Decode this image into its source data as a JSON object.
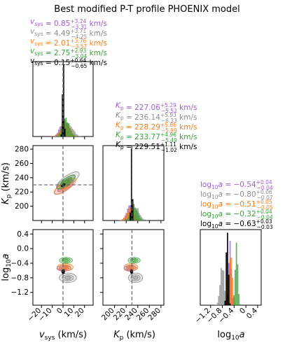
{
  "chart_data": {
    "type": "corner",
    "title": "Best modified P-T profile PHOENIX model",
    "colors": {
      "purple": "#a05ccf",
      "gray": "#8c8c8c",
      "orange": "#f27f1b",
      "green": "#3a9e3a",
      "black": "#000000"
    },
    "params": [
      {
        "key": "vsys",
        "label": "v_sys (km/s)",
        "tex": "vsys",
        "range": [
          -28,
          28
        ],
        "ticks": [
          -20,
          -10,
          0,
          10,
          20
        ],
        "truth": 0
      },
      {
        "key": "kp",
        "label": "K_p (km/s)",
        "tex": "Kp",
        "range": [
          180,
          285
        ],
        "ticks": [
          200,
          220,
          240,
          260,
          280
        ],
        "truth": 230
      },
      {
        "key": "loga",
        "label": "log10 a",
        "tex": "loga",
        "range": [
          -1.55,
          0.52
        ],
        "ticks": [
          -1.2,
          -0.8,
          -0.4,
          0.0,
          0.4
        ],
        "truth": null
      }
    ],
    "series": [
      {
        "name": "purple",
        "color": "#a05ccf",
        "vsys": {
          "median": "0.85",
          "plus": "+3.24",
          "minus": "−3.31",
          "mu": 0.85,
          "sigma": 3.3
        },
        "kp": {
          "median": "227.06",
          "plus": "+5.29",
          "minus": "−5.52",
          "mu": 227.06,
          "sigma": 5.4
        },
        "loga": {
          "median": "−0.54",
          "plus": "+0.04",
          "minus": "−0.04",
          "mu": -0.54,
          "sigma": 0.04
        }
      },
      {
        "name": "gray",
        "color": "#8c8c8c",
        "vsys": {
          "median": "4.49",
          "plus": "+3.71",
          "minus": "−4.25",
          "mu": 4.49,
          "sigma": 4.0
        },
        "kp": {
          "median": "236.14",
          "plus": "+5.93",
          "minus": "−6.33",
          "mu": 236.14,
          "sigma": 6.1
        },
        "loga": {
          "median": "−0.80",
          "plus": "+0.06",
          "minus": "−0.07",
          "mu": -0.8,
          "sigma": 0.065
        }
      },
      {
        "name": "orange",
        "color": "#f27f1b",
        "vsys": {
          "median": "2.01",
          "plus": "+3.76",
          "minus": "−3.57",
          "mu": 2.01,
          "sigma": 3.7
        },
        "kp": {
          "median": "228.29",
          "plus": "+5.86",
          "minus": "−5.99",
          "mu": 228.29,
          "sigma": 5.9
        },
        "loga": {
          "median": "−0.51",
          "plus": "+0.05",
          "minus": "−0.05",
          "mu": -0.51,
          "sigma": 0.05
        }
      },
      {
        "name": "green",
        "color": "#3a9e3a",
        "vsys": {
          "median": "2.75",
          "plus": "+2.93",
          "minus": "−3.04",
          "mu": 2.75,
          "sigma": 3.0
        },
        "kp": {
          "median": "233.77",
          "plus": "+4.96",
          "minus": "−5.49",
          "mu": 233.77,
          "sigma": 5.2
        },
        "loga": {
          "median": "−0.32",
          "plus": "+0.04",
          "minus": "−0.04",
          "mu": -0.32,
          "sigma": 0.04
        }
      },
      {
        "name": "black",
        "color": "#000000",
        "vsys": {
          "median": "0.15",
          "plus": "+0.64",
          "minus": "−0.65",
          "mu": 0.15,
          "sigma": 0.65
        },
        "kp": {
          "median": "229.51",
          "plus": "+1.11",
          "minus": "−1.02",
          "mu": 229.51,
          "sigma": 1.05
        },
        "loga": {
          "median": "−0.63",
          "plus": "+0.03",
          "minus": "−0.03",
          "mu": -0.63,
          "sigma": 0.03
        }
      }
    ],
    "units": {
      "vsys": "km/s",
      "kp": "km/s",
      "loga": ""
    }
  }
}
